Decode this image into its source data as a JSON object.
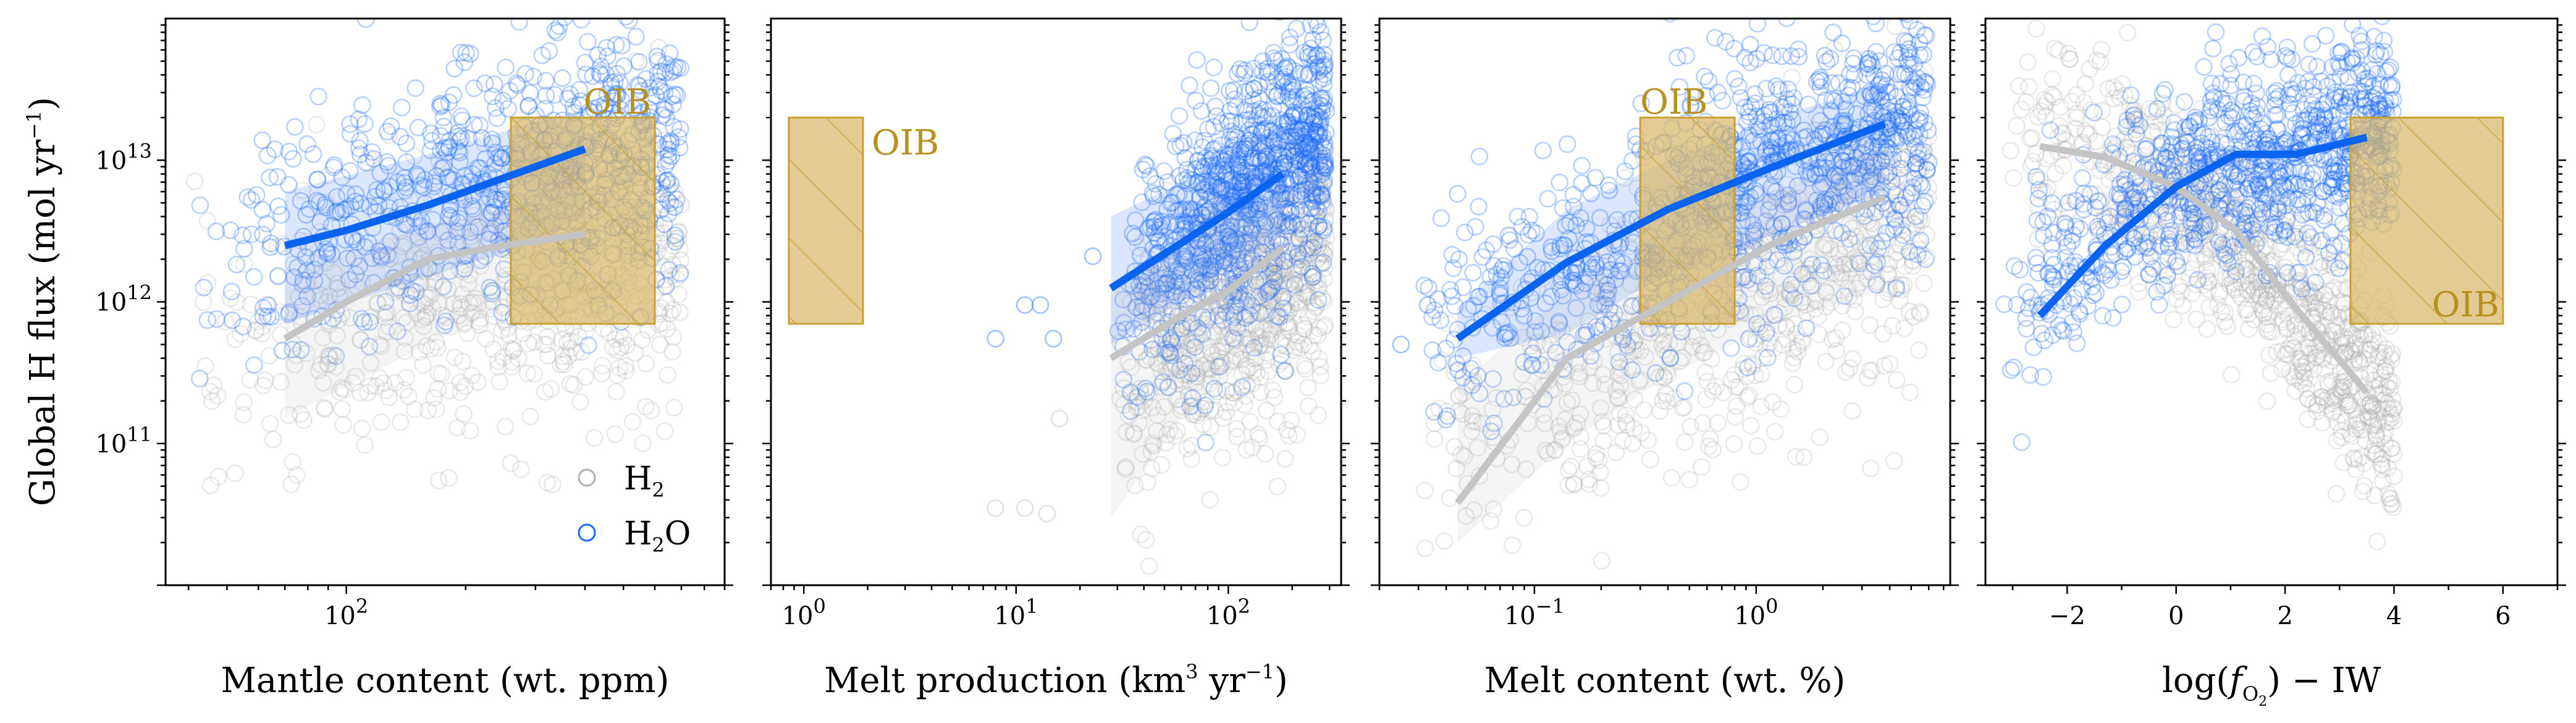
{
  "figure": {
    "ylabel": "Global H flux (mol yr−1)",
    "ylabel_parts": {
      "main": "Global H flux (mol yr",
      "sup": "−1",
      "close": ")"
    },
    "ylim": [
      10000000000.0,
      100000000000000.0
    ],
    "yscale": "log",
    "ytick_labels": [
      {
        "v": 100000000000.0,
        "base": "10",
        "exp": "11"
      },
      {
        "v": 1000000000000.0,
        "base": "10",
        "exp": "12"
      },
      {
        "v": 10000000000000.0,
        "base": "10",
        "exp": "13"
      }
    ],
    "colors": {
      "H2": "#b0b0b0",
      "H2O": "#1a6bff",
      "h2_line": "#c4c4c4",
      "h2o_line": "#0a64f0",
      "oib_fill": "#d9b76a",
      "oib_edge": "#c9a132",
      "oib_text": "#b8901e"
    },
    "legend": {
      "placement": "lower-right of panel 1",
      "items": [
        {
          "key": "H2",
          "base": "H",
          "sub": "2",
          "rest": ""
        },
        {
          "key": "H2O",
          "base": "H",
          "sub": "2",
          "rest": "O"
        }
      ]
    }
  },
  "chart_data": [
    {
      "type": "scatter",
      "xlabel": "Mantle content (wt. ppm)",
      "xscale": "log",
      "xlim": [
        35,
        900
      ],
      "xtick_labels": [
        {
          "v": 100,
          "base": "10",
          "exp": "2"
        }
      ],
      "oib": {
        "label": "OIB",
        "x": [
          260,
          600
        ],
        "y": [
          700000000000.0,
          20000000000000.0
        ],
        "label_pos": "top-right"
      },
      "series": [
        {
          "name": "H2O",
          "line": {
            "x": [
              70,
              100,
              160,
              250,
              400
            ],
            "y": [
              2500000000000.0,
              3200000000000.0,
              4800000000000.0,
              7500000000000.0,
              12000000000000.0
            ]
          },
          "band": {
            "x": [
              70,
              160,
              250,
              400
            ],
            "lo": [
              700000000000.0,
              1500000000000.0,
              2200000000000.0,
              4000000000000.0
            ],
            "hi": [
              6000000000000.0,
              11000000000000.0,
              16000000000000.0,
              23000000000000.0
            ]
          },
          "cloud": {
            "x_range": [
              40,
              700
            ],
            "y_center_at_min": 1800000000000.0,
            "y_center_at_max": 14000000000000.0,
            "spread": 0.45,
            "n": 700
          }
        },
        {
          "name": "H2",
          "line": {
            "x": [
              70,
              100,
              160,
              250,
              400
            ],
            "y": [
              550000000000.0,
              1000000000000.0,
              2000000000000.0,
              2500000000000.0,
              3000000000000.0
            ]
          },
          "band": {
            "x": [
              70,
              160,
              250,
              400
            ],
            "lo": [
              150000000000.0,
              500000000000.0,
              900000000000.0,
              1100000000000.0
            ],
            "hi": [
              1500000000000.0,
              3500000000000.0,
              4500000000000.0,
              5500000000000.0
            ]
          },
          "cloud": {
            "x_range": [
              40,
              700
            ],
            "y_center_at_min": 300000000000.0,
            "y_center_at_max": 2500000000000.0,
            "spread": 0.5,
            "n": 600
          }
        }
      ]
    },
    {
      "type": "scatter",
      "xlabel": "Melt production (km3 yr−1)",
      "xscale": "log",
      "xlim": [
        0.7,
        340
      ],
      "xtick_labels": [
        {
          "v": 1,
          "base": "10",
          "exp": "0"
        },
        {
          "v": 10,
          "base": "10",
          "exp": "1"
        },
        {
          "v": 100,
          "base": "10",
          "exp": "2"
        }
      ],
      "oib": {
        "label": "OIB",
        "x": [
          0.85,
          1.9
        ],
        "y": [
          700000000000.0,
          20000000000000.0
        ],
        "label_pos": "right"
      },
      "series": [
        {
          "name": "H2O",
          "line": {
            "x": [
              28,
              60,
              100,
              180
            ],
            "y": [
              1250000000000.0,
              2600000000000.0,
              4300000000000.0,
              8000000000000.0
            ]
          },
          "band": {
            "x": [
              28,
              60,
              100,
              180
            ],
            "lo": [
              500000000000.0,
              1000000000000.0,
              1800000000000.0,
              3000000000000.0
            ],
            "hi": [
              4000000000000.0,
              7000000000000.0,
              11000000000000.0,
              18000000000000.0
            ]
          },
          "cloud": {
            "x_range": [
              30,
              290
            ],
            "y_center_at_min": 1000000000000.0,
            "y_center_at_max": 18000000000000.0,
            "spread": 0.45,
            "n": 900
          },
          "outliers": [
            {
              "x": 8,
              "y": 550000000000.0
            },
            {
              "x": 11,
              "y": 950000000000.0
            },
            {
              "x": 13,
              "y": 950000000000.0
            },
            {
              "x": 15,
              "y": 550000000000.0
            },
            {
              "x": 23,
              "y": 2100000000000.0
            }
          ]
        },
        {
          "name": "H2",
          "line": {
            "x": [
              28,
              60,
              100,
              180
            ],
            "y": [
              400000000000.0,
              800000000000.0,
              1200000000000.0,
              2400000000000.0
            ]
          },
          "band": {
            "x": [
              28,
              60,
              100,
              180
            ],
            "lo": [
              30000000000.0,
              150000000000.0,
              300000000000.0,
              600000000000.0
            ],
            "hi": [
              1300000000000.0,
              2500000000000.0,
              4000000000000.0,
              6000000000000.0
            ]
          },
          "cloud": {
            "x_range": [
              30,
              290
            ],
            "y_center_at_min": 250000000000.0,
            "y_center_at_max": 2500000000000.0,
            "spread": 0.5,
            "n": 700
          },
          "outliers": [
            {
              "x": 8,
              "y": 35000000000.0
            },
            {
              "x": 11,
              "y": 35000000000.0
            },
            {
              "x": 14,
              "y": 32000000000.0
            },
            {
              "x": 16,
              "y": 150000000000.0
            }
          ]
        }
      ]
    },
    {
      "type": "scatter",
      "xlabel": "Melt content (wt. %)",
      "xscale": "log",
      "xlim": [
        0.02,
        7.5
      ],
      "xtick_labels": [
        {
          "v": 0.1,
          "base": "10",
          "exp": "−1"
        },
        {
          "v": 1,
          "base": "10",
          "exp": "0"
        }
      ],
      "oib": {
        "label": "OIB",
        "x": [
          0.3,
          0.8
        ],
        "y": [
          700000000000.0,
          20000000000000.0
        ],
        "label_pos": "top-left"
      },
      "series": [
        {
          "name": "H2O",
          "line": {
            "x": [
              0.045,
              0.14,
              0.4,
              1.2,
              3.8
            ],
            "y": [
              550000000000.0,
              1900000000000.0,
              4500000000000.0,
              9000000000000.0,
              18000000000000.0
            ]
          },
          "band": {
            "x": [
              0.045,
              0.14,
              0.4,
              1.2,
              3.8
            ],
            "lo": [
              400000000000.0,
              600000000000.0,
              1600000000000.0,
              3000000000000.0,
              6000000000000.0
            ],
            "hi": [
              900000000000.0,
              4500000000000.0,
              10000000000000.0,
              20000000000000.0,
              35000000000000.0
            ]
          },
          "cloud": {
            "x_range": [
              0.03,
              6
            ],
            "y_center_at_min": 600000000000.0,
            "y_center_at_max": 22000000000000.0,
            "spread": 0.45,
            "n": 900
          },
          "outliers": [
            {
              "x": 0.025,
              "y": 500000000000.0
            },
            {
              "x": 0.033,
              "y": 950000000000.0
            }
          ]
        },
        {
          "name": "H2",
          "line": {
            "x": [
              0.045,
              0.14,
              0.4,
              1.2,
              3.8
            ],
            "y": [
              38000000000.0,
              400000000000.0,
              1000000000000.0,
              2600000000000.0,
              5500000000000.0
            ]
          },
          "band": {
            "x": [
              0.045,
              0.14,
              0.4,
              1.2,
              3.8
            ],
            "lo": [
              20000000000.0,
              100000000000.0,
              300000000000.0,
              700000000000.0,
              1200000000000.0
            ],
            "hi": [
              250000000000.0,
              1200000000000.0,
              2500000000000.0,
              6000000000000.0,
              12000000000000.0
            ]
          },
          "cloud": {
            "x_range": [
              0.03,
              6
            ],
            "y_center_at_min": 80000000000.0,
            "y_center_at_max": 5000000000000.0,
            "spread": 0.55,
            "n": 700
          }
        }
      ]
    },
    {
      "type": "scatter",
      "xlabel": "log(fO2) − IW",
      "xlabel_parts": {
        "pre": "log(",
        "f": "f",
        "sub": "O2",
        "post": ") − IW"
      },
      "xscale": "linear",
      "xlim": [
        -3.5,
        7
      ],
      "xtick_labels": [
        {
          "v": -2,
          "text": "−2"
        },
        {
          "v": 0,
          "text": "0"
        },
        {
          "v": 2,
          "text": "2"
        },
        {
          "v": 4,
          "text": "4"
        },
        {
          "v": 6,
          "text": "6"
        }
      ],
      "oib": {
        "label": "OIB",
        "x": [
          3.2,
          6
        ],
        "y": [
          700000000000.0,
          20000000000000.0
        ],
        "label_pos": "bottom-right"
      },
      "series": [
        {
          "name": "H2O",
          "line": {
            "x": [
              -2.5,
              -1.3,
              0,
              1.1,
              2.2,
              3.5
            ],
            "y": [
              800000000000.0,
              2500000000000.0,
              6500000000000.0,
              11000000000000.0,
              11000000000000.0,
              14500000000000.0
            ]
          },
          "band": null,
          "cloud": {
            "x_range": [
              -3.2,
              4
            ],
            "y_center_at_min": 500000000000.0,
            "y_center_at_max": 14000000000000.0,
            "spread": 0.35,
            "n": 900,
            "shape": "saturating"
          }
        },
        {
          "name": "H2",
          "line": {
            "x": [
              -2.5,
              -1.3,
              0,
              1.1,
              2.2,
              3.5
            ],
            "y": [
              12500000000000.0,
              10500000000000.0,
              6500000000000.0,
              3200000000000.0,
              900000000000.0,
              230000000000.0
            ]
          },
          "band": null,
          "cloud": {
            "x_range": [
              -3.2,
              4
            ],
            "y_center_at_min": 15000000000000.0,
            "y_center_at_max": 150000000000.0,
            "spread": 0.35,
            "n": 900,
            "shape": "decaying"
          }
        }
      ]
    }
  ]
}
